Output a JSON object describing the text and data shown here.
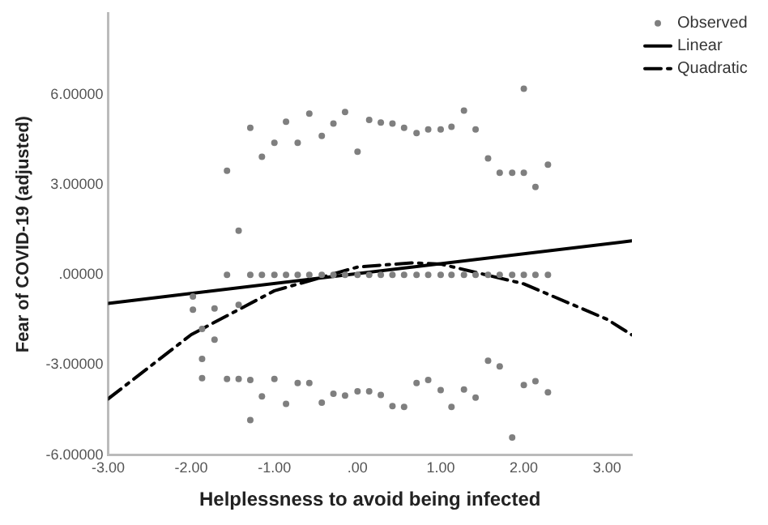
{
  "chart_data": {
    "type": "scatter",
    "xlabel": "Helplessness to avoid being infected",
    "ylabel": "Fear of COVID-19 (adjusted)",
    "xlim": [
      -3,
      3.3
    ],
    "ylim": [
      -6,
      8.7
    ],
    "xticks": [
      {
        "value": -3,
        "label": "-3.00"
      },
      {
        "value": -2,
        "label": "-2.00"
      },
      {
        "value": -1,
        "label": "-1.00"
      },
      {
        "value": 0,
        "label": ".00"
      },
      {
        "value": 1,
        "label": "1.00"
      },
      {
        "value": 2,
        "label": "2.00"
      },
      {
        "value": 3,
        "label": "3.00"
      }
    ],
    "yticks": [
      {
        "value": -6,
        "label": "-6.00000"
      },
      {
        "value": -3,
        "label": "-3.00000"
      },
      {
        "value": 0,
        "label": ".00000"
      },
      {
        "value": 3,
        "label": "3.00000"
      },
      {
        "value": 6,
        "label": "6.00000"
      }
    ],
    "grid": false,
    "legend": "top right",
    "series": [
      {
        "name": "Observed",
        "type": "scatter",
        "marker": "circle",
        "color": "#7f7f7f",
        "x": [
          -1.98,
          -1.98,
          -1.87,
          -1.87,
          -1.87,
          -1.72,
          -1.72,
          -1.57,
          -1.57,
          -1.57,
          -1.43,
          -1.43,
          -1.43,
          -1.29,
          -1.29,
          -1.29,
          -1.29,
          -1.15,
          -1.15,
          -1.15,
          -1.0,
          -1.0,
          -1.0,
          -0.86,
          -0.86,
          -0.86,
          -0.72,
          -0.72,
          -0.72,
          -0.58,
          -0.58,
          -0.58,
          -0.43,
          -0.43,
          -0.43,
          -0.29,
          -0.29,
          -0.29,
          -0.15,
          -0.15,
          -0.15,
          0.0,
          0.0,
          0.0,
          0.14,
          0.14,
          0.14,
          0.28,
          0.28,
          0.28,
          0.42,
          0.42,
          0.42,
          0.56,
          0.56,
          0.56,
          0.71,
          0.71,
          0.71,
          0.85,
          0.85,
          0.85,
          1.0,
          1.0,
          1.0,
          1.13,
          1.13,
          1.13,
          1.28,
          1.28,
          1.28,
          1.42,
          1.42,
          1.42,
          1.57,
          1.57,
          1.57,
          1.71,
          1.71,
          1.71,
          1.86,
          1.86,
          1.86,
          2.0,
          2.0,
          2.0,
          2.0,
          2.14,
          2.14,
          2.14,
          2.29,
          2.29,
          2.29
        ],
        "values": [
          -0.72,
          -1.16,
          -1.8,
          -2.8,
          -3.44,
          -1.12,
          -2.16,
          3.47,
          0,
          -3.47,
          1.47,
          -1,
          -3.47,
          4.9,
          0,
          -3.5,
          -4.84,
          3.93,
          0,
          -4.05,
          4.4,
          0,
          -3.47,
          5.1,
          0,
          -4.3,
          4.4,
          0,
          -3.6,
          5.37,
          0,
          -3.6,
          4.63,
          0,
          -4.26,
          5.04,
          0,
          -3.96,
          5.42,
          0,
          -4.02,
          4.1,
          0,
          -3.88,
          5.16,
          0,
          -3.88,
          5.07,
          0,
          -4.0,
          5.04,
          0,
          -4.37,
          4.9,
          0,
          -4.4,
          4.72,
          0,
          -3.6,
          4.84,
          0,
          -3.5,
          4.84,
          0,
          -3.84,
          4.93,
          0,
          -4.4,
          5.47,
          0,
          -3.82,
          4.84,
          0,
          -4.09,
          3.88,
          0,
          -2.86,
          3.4,
          0,
          -3.05,
          3.4,
          0,
          -5.42,
          6.2,
          3.4,
          0,
          -3.67,
          2.93,
          0,
          -3.54,
          3.67,
          0,
          -3.91
        ]
      },
      {
        "name": "Linear",
        "type": "line",
        "marker": "none",
        "line_style": "solid",
        "color": "#000000",
        "x": [
          -3,
          3.3
        ],
        "values": [
          -0.95,
          1.13
        ]
      },
      {
        "name": "Quadratic",
        "type": "line",
        "marker": "none",
        "line_style": "dashed",
        "color": "#000000",
        "x": [
          -3,
          -2,
          -1,
          0,
          0.65,
          1,
          2,
          3,
          3.3
        ],
        "values": [
          -4.13,
          -1.99,
          -0.53,
          0.26,
          0.4,
          0.36,
          -0.3,
          -1.48,
          -2.0
        ]
      }
    ]
  }
}
